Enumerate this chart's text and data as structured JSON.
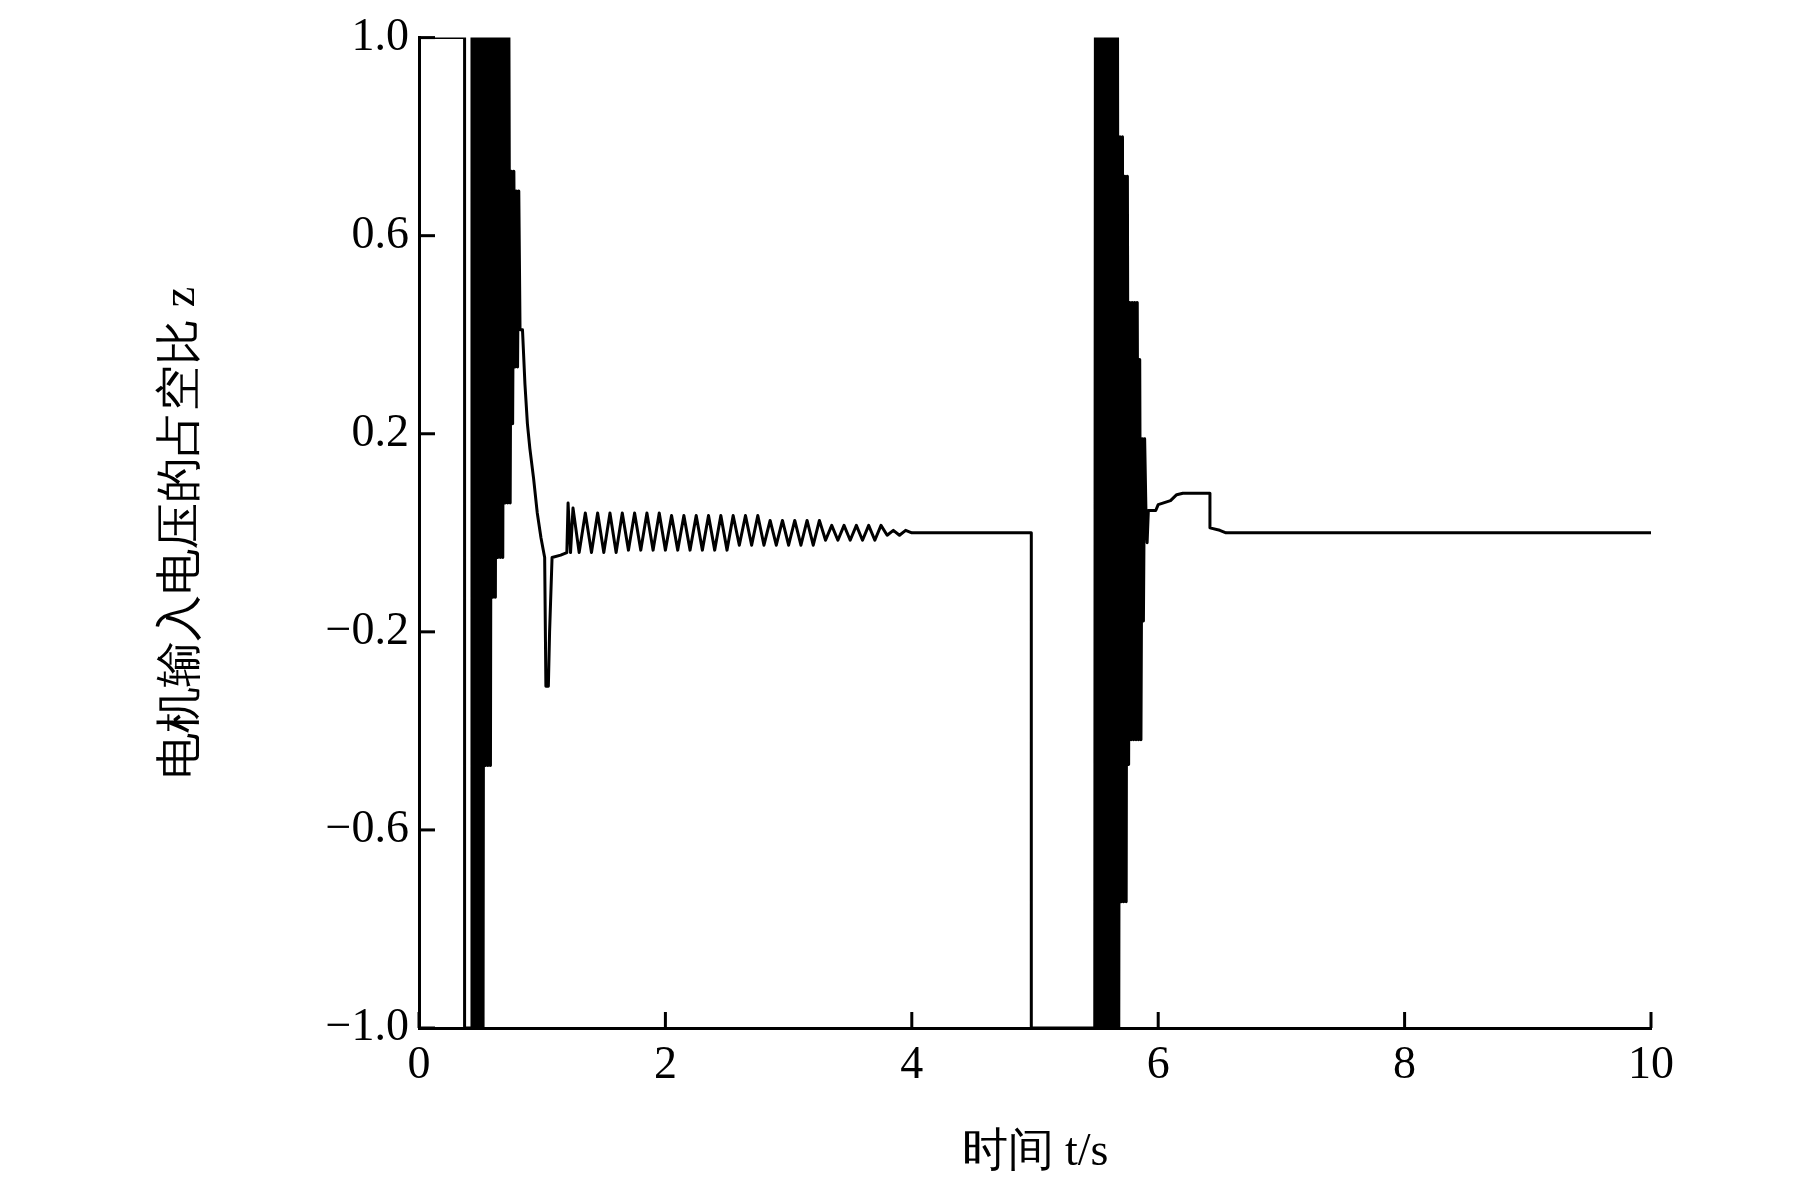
{
  "chart_data": {
    "type": "line",
    "xlabel": "时间 t/s",
    "ylabel": "电机输入电压的占空比 z",
    "xlim": [
      0,
      10
    ],
    "xticks": [
      0,
      2,
      4,
      6,
      8,
      10
    ],
    "ylim": [
      -1,
      1
    ],
    "yticks": [
      {
        "value": -1,
        "label": "−1.0"
      },
      {
        "value": -0.6,
        "label": "−0.6"
      },
      {
        "value": -0.2,
        "label": "−0.2"
      },
      0.2,
      0.6,
      {
        "value": 1,
        "label": "1.0"
      }
    ],
    "grid": false,
    "legend": false,
    "marker": "none",
    "line_style": "solid",
    "series": [
      {
        "color": "#000000",
        "x": [
          0,
          0.37,
          0.37,
          0.425,
          0.43,
          0.44,
          0.45,
          0.46,
          0.47,
          0.48,
          0.49,
          0.5,
          0.51,
          0.52,
          0.53,
          0.54,
          0.55,
          0.56,
          0.57,
          0.58,
          0.59,
          0.6,
          0.61,
          0.62,
          0.63,
          0.64,
          0.65,
          0.66,
          0.67,
          0.68,
          0.69,
          0.7,
          0.71,
          0.72,
          0.73,
          0.74,
          0.75,
          0.76,
          0.77,
          0.78,
          0.79,
          0.8,
          0.81,
          0.82,
          0.84,
          0.86,
          0.88,
          0.9,
          0.93,
          0.96,
          0.99,
          1.02,
          1.03,
          1.05,
          1.06,
          1.08,
          1.15,
          1.2,
          1.21,
          1.23,
          1.25,
          1.3,
          1.35,
          1.4,
          1.45,
          1.5,
          1.55,
          1.6,
          1.65,
          1.7,
          1.75,
          1.8,
          1.85,
          1.9,
          1.95,
          2,
          2.05,
          2.1,
          2.15,
          2.2,
          2.25,
          2.3,
          2.35,
          2.4,
          2.45,
          2.5,
          2.55,
          2.6,
          2.65,
          2.7,
          2.75,
          2.8,
          2.85,
          2.9,
          2.95,
          3,
          3.05,
          3.1,
          3.15,
          3.2,
          3.25,
          3.3,
          3.35,
          3.4,
          3.45,
          3.5,
          3.55,
          3.6,
          3.65,
          3.7,
          3.75,
          3.8,
          3.85,
          3.9,
          3.95,
          4,
          4.97,
          4.97,
          5.485,
          5.49,
          5.5,
          5.51,
          5.52,
          5.53,
          5.54,
          5.55,
          5.56,
          5.57,
          5.58,
          5.59,
          5.6,
          5.61,
          5.62,
          5.63,
          5.64,
          5.65,
          5.66,
          5.67,
          5.68,
          5.69,
          5.7,
          5.71,
          5.72,
          5.73,
          5.74,
          5.75,
          5.76,
          5.77,
          5.78,
          5.79,
          5.8,
          5.81,
          5.82,
          5.83,
          5.84,
          5.85,
          5.86,
          5.87,
          5.88,
          5.89,
          5.9,
          5.91,
          5.92,
          5.98,
          6,
          6.1,
          6.15,
          6.2,
          6.42,
          6.42,
          6.5,
          6.55,
          10
        ],
        "values": [
          1,
          1,
          -1,
          -1,
          1,
          -1,
          1,
          -1,
          1,
          -1,
          1,
          -1,
          1,
          -1,
          1,
          -0.47,
          1,
          -0.47,
          1,
          -0.47,
          1,
          -0.13,
          1,
          -0.13,
          1,
          -0.05,
          1,
          -0.05,
          1,
          -0.05,
          1,
          0.06,
          1,
          0.06,
          1,
          0.06,
          0.73,
          0.22,
          0.73,
          0.335,
          0.69,
          0.335,
          0.69,
          0.41,
          0.41,
          0.3,
          0.22,
          0.17,
          0.11,
          0.04,
          -0.01,
          -0.05,
          -0.31,
          -0.31,
          -0.2,
          -0.05,
          -0.045,
          -0.04,
          0.06,
          -0.04,
          0.05,
          -0.04,
          0.04,
          -0.04,
          0.04,
          -0.04,
          0.04,
          -0.04,
          0.04,
          -0.035,
          0.04,
          -0.035,
          0.04,
          -0.035,
          0.04,
          -0.035,
          0.035,
          -0.035,
          0.035,
          -0.035,
          0.035,
          -0.035,
          0.035,
          -0.035,
          0.035,
          -0.035,
          0.035,
          -0.025,
          0.035,
          -0.025,
          0.035,
          -0.025,
          0.025,
          -0.025,
          0.025,
          -0.025,
          0.025,
          -0.025,
          0.025,
          -0.025,
          0.025,
          -0.015,
          0.015,
          -0.015,
          0.015,
          -0.015,
          0.015,
          -0.015,
          0.015,
          -0.015,
          0.015,
          -0.005,
          0.005,
          -0.005,
          0.005,
          0,
          0,
          -1,
          -1,
          1,
          -1,
          1,
          -1,
          1,
          -1,
          1,
          -1,
          1,
          -1,
          1,
          -1,
          1,
          -1,
          1,
          -1,
          1,
          -1,
          1,
          -1,
          0.8,
          -0.745,
          0.8,
          -0.745,
          0.72,
          -0.745,
          0.72,
          -0.468,
          0.465,
          -0.418,
          0.465,
          -0.418,
          0.465,
          -0.418,
          0.465,
          -0.418,
          0.35,
          -0.418,
          0.19,
          -0.178,
          0.19,
          0.05,
          -0.02,
          0.045,
          0.045,
          0.057,
          0.065,
          0.077,
          0.08,
          0.08,
          0.01,
          0.005,
          0,
          0
        ]
      }
    ]
  }
}
